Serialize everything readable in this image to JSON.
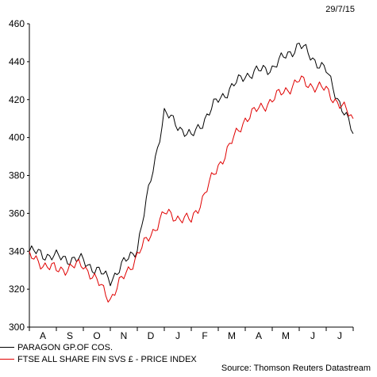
{
  "date_label": "29/7/15",
  "source": "Source: Thomson Reuters Datastream",
  "chart_data": {
    "type": "line",
    "x_ticks": [
      "A",
      "S",
      "O",
      "N",
      "D",
      "J",
      "F",
      "M",
      "A",
      "M",
      "J",
      "J"
    ],
    "y_ticks": [
      300,
      320,
      340,
      360,
      380,
      400,
      420,
      440,
      460
    ],
    "ylim": [
      300,
      460
    ],
    "grid": false,
    "legend_position": "bottom-left",
    "x": [
      "Jul 14",
      "Aug 14",
      "Sep 14",
      "Oct 14",
      "Nov 14",
      "Dec 14",
      "Jan 15",
      "Feb 15",
      "Mar 15",
      "Apr 15",
      "May 15",
      "Jun 15",
      "Jul 15"
    ],
    "series": [
      {
        "name": "PARAGON GP.OF COS.",
        "color": "#000000",
        "values": [
          340,
          337,
          335,
          325,
          342,
          413,
          400,
          420,
          433,
          437,
          449,
          435,
          402
        ]
      },
      {
        "name": "FTSE ALL SHARE FIN SVS £ - PRICE INDEX",
        "color": "#e00000",
        "values": [
          337,
          330,
          333,
          315,
          338,
          360,
          356,
          385,
          410,
          420,
          430,
          425,
          410
        ]
      }
    ]
  }
}
